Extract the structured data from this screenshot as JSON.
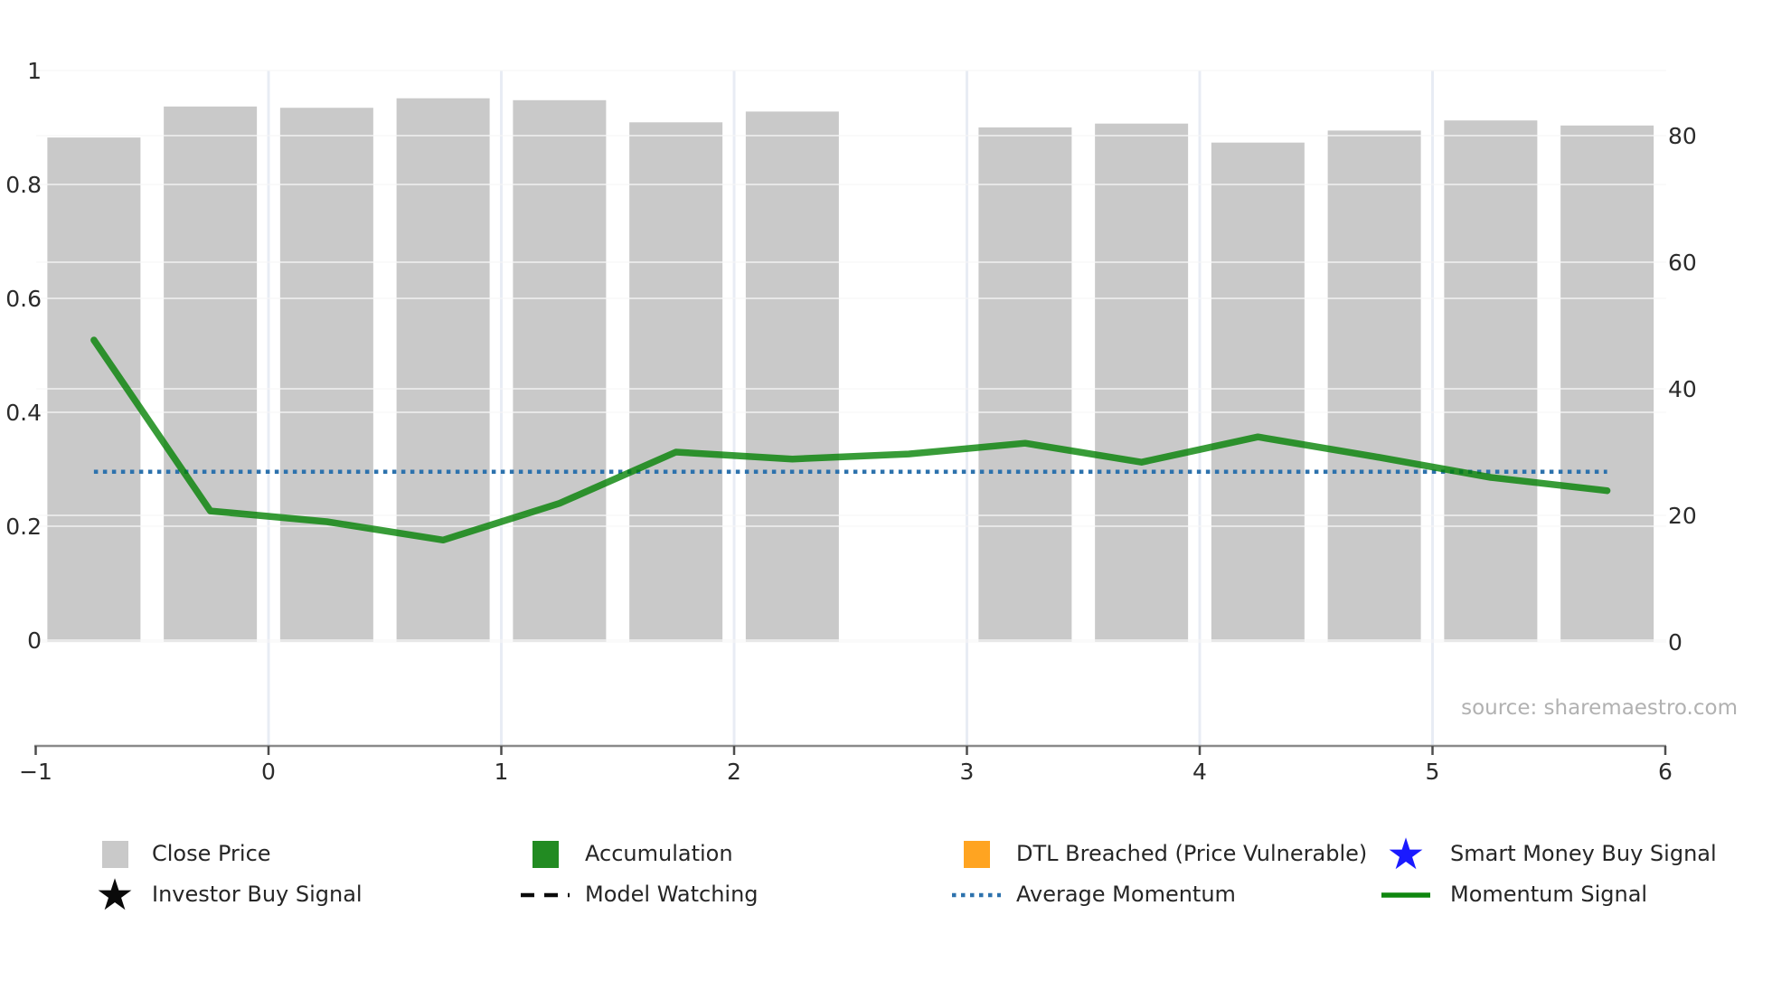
{
  "source": {
    "text": "source: sharemaestro.com"
  },
  "axes": {
    "x_ticks": [
      {
        "label": "−1",
        "v": -1
      },
      {
        "label": "0",
        "v": 0
      },
      {
        "label": "1",
        "v": 1
      },
      {
        "label": "2",
        "v": 2
      },
      {
        "label": "3",
        "v": 3
      },
      {
        "label": "4",
        "v": 4
      },
      {
        "label": "5",
        "v": 5
      },
      {
        "label": "6",
        "v": 6
      }
    ],
    "left_ticks": [
      {
        "label": "0",
        "v": 0
      },
      {
        "label": "0.2",
        "v": 0.2
      },
      {
        "label": "0.4",
        "v": 0.4
      },
      {
        "label": "0.6",
        "v": 0.6
      },
      {
        "label": "0.8",
        "v": 0.8
      },
      {
        "label": "1",
        "v": 1
      }
    ],
    "right_ticks": [
      {
        "label": "0",
        "v": 0
      },
      {
        "label": "20",
        "v": 20
      },
      {
        "label": "40",
        "v": 40
      },
      {
        "label": "60",
        "v": 60
      },
      {
        "label": "80",
        "v": 80
      }
    ],
    "x_range": [
      -1,
      6
    ],
    "left_ylim": [
      0,
      1
    ],
    "right_ylim_shown": [
      0,
      80
    ],
    "vertical_gridlines_at": [
      0,
      1,
      2,
      3,
      4,
      5
    ]
  },
  "chart_data": {
    "type": "bar+line",
    "bars": {
      "name": "Close Price",
      "axis": "right",
      "color": "#c9c9c9",
      "bar_width_units": 0.4,
      "x": [
        -0.75,
        -0.25,
        0.25,
        0.75,
        1.25,
        1.75,
        2.25,
        3.25,
        3.75,
        4.25,
        4.75,
        5.25,
        5.75
      ],
      "values": [
        79.7,
        84.6,
        84.4,
        85.9,
        85.6,
        82.1,
        83.8,
        81.3,
        81.9,
        78.9,
        80.8,
        82.4,
        81.6
      ]
    },
    "line": {
      "name": "Momentum Signal",
      "axis": "right",
      "color": "#008000",
      "opacity": 0.78,
      "x": [
        -0.75,
        -0.25,
        0.25,
        0.75,
        1.25,
        1.75,
        2.25,
        2.75,
        3.25,
        3.75,
        4.25,
        4.75,
        5.25,
        5.75
      ],
      "values": [
        47.7,
        20.7,
        19.0,
        16.1,
        21.9,
        30.0,
        28.9,
        29.7,
        31.4,
        28.4,
        32.4,
        29.3,
        26.0,
        23.9
      ]
    },
    "average_momentum": {
      "name": "Average Momentum",
      "axis": "right",
      "value": 26.9,
      "x_span": [
        -0.75,
        5.75
      ],
      "color": "#2d72ad",
      "style": "dotted"
    }
  },
  "legend": {
    "items": [
      {
        "name": "close-price",
        "label": "Close Price",
        "marker": "square",
        "color": "#c9c9c9",
        "col": 0,
        "row": 0
      },
      {
        "name": "accumulation",
        "label": "Accumulation",
        "marker": "square",
        "color": "#228B22",
        "col": 1,
        "row": 0
      },
      {
        "name": "dtl-breached",
        "label": "DTL Breached (Price Vulnerable)",
        "marker": "square",
        "color": "#FFA421",
        "col": 2,
        "row": 0
      },
      {
        "name": "smart-money-buy-signal",
        "label": "Smart Money Buy Signal",
        "marker": "star",
        "color": "#1a1aff",
        "col": 3,
        "row": 0
      },
      {
        "name": "investor-buy-signal",
        "label": "Investor Buy Signal",
        "marker": "star",
        "color": "#0a0a0a",
        "col": 0,
        "row": 1
      },
      {
        "name": "model-watching",
        "label": "Model Watching",
        "marker": "dashed-line",
        "color": "#0a0a0a",
        "col": 1,
        "row": 1
      },
      {
        "name": "average-momentum",
        "label": "Average Momentum",
        "marker": "dotted-line",
        "color": "#2d72ad",
        "col": 2,
        "row": 1
      },
      {
        "name": "momentum-signal",
        "label": "Momentum Signal",
        "marker": "solid-line",
        "color": "#0f870f",
        "col": 3,
        "row": 1
      }
    ]
  }
}
